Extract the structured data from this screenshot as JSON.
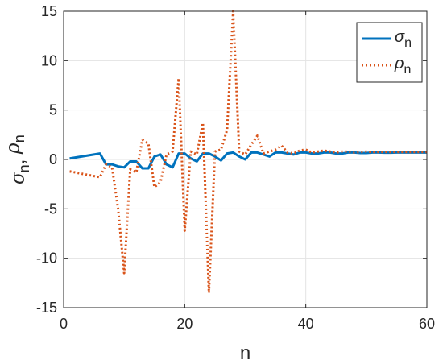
{
  "chart_data": {
    "type": "line",
    "xlabel": "n",
    "ylabel": "σn, ρn",
    "xlim": [
      0,
      60
    ],
    "ylim": [
      -15,
      15
    ],
    "xticks": [
      0,
      20,
      40,
      60
    ],
    "yticks": [
      15,
      10,
      5,
      0,
      -5,
      -10,
      -15
    ],
    "xtick_labels": [
      "0",
      "20",
      "40",
      "60"
    ],
    "ytick_labels": [
      "15",
      "10",
      "5",
      "0",
      "-5",
      "-10",
      "-15"
    ],
    "grid": true,
    "legend_position": "top-right",
    "series": [
      {
        "name": "σn",
        "name_base": "σ",
        "name_sub": "n",
        "color": "#0072BD",
        "style": "solid",
        "points": [
          [
            1,
            0.1
          ],
          [
            6,
            0.6
          ],
          [
            7,
            -0.5
          ],
          [
            8,
            -0.5
          ],
          [
            9,
            -0.7
          ],
          [
            10,
            -0.8
          ],
          [
            11,
            -0.2
          ],
          [
            12,
            -0.2
          ],
          [
            13,
            -0.9
          ],
          [
            14,
            -0.9
          ],
          [
            15,
            0.3
          ],
          [
            16,
            0.5
          ],
          [
            17,
            -0.5
          ],
          [
            18,
            -0.8
          ],
          [
            19,
            0.6
          ],
          [
            20,
            0.6
          ],
          [
            21,
            0.1
          ],
          [
            22,
            -0.2
          ],
          [
            23,
            0.6
          ],
          [
            24,
            0.6
          ],
          [
            25,
            0.3
          ],
          [
            26,
            -0.1
          ],
          [
            27,
            0.6
          ],
          [
            28,
            0.7
          ],
          [
            29,
            0.3
          ],
          [
            30,
            0.0
          ],
          [
            31,
            0.7
          ],
          [
            32,
            0.7
          ],
          [
            33,
            0.5
          ],
          [
            34,
            0.3
          ],
          [
            35,
            0.7
          ],
          [
            36,
            0.7
          ],
          [
            37,
            0.6
          ],
          [
            38,
            0.5
          ],
          [
            39,
            0.7
          ],
          [
            40,
            0.7
          ],
          [
            41,
            0.6
          ],
          [
            42,
            0.6
          ],
          [
            43,
            0.7
          ],
          [
            44,
            0.7
          ],
          [
            45,
            0.6
          ],
          [
            46,
            0.6
          ],
          [
            47,
            0.7
          ],
          [
            48,
            0.7
          ],
          [
            49,
            0.65
          ],
          [
            50,
            0.65
          ],
          [
            51,
            0.7
          ],
          [
            52,
            0.7
          ],
          [
            53,
            0.68
          ],
          [
            54,
            0.68
          ],
          [
            55,
            0.7
          ],
          [
            56,
            0.7
          ],
          [
            57,
            0.7
          ],
          [
            58,
            0.7
          ],
          [
            59,
            0.7
          ],
          [
            60,
            0.7
          ]
        ]
      },
      {
        "name": "ρn",
        "name_base": "ρ",
        "name_sub": "n",
        "color": "#D95319",
        "style": "dotted",
        "points": [
          [
            1,
            -1.2
          ],
          [
            6,
            -1.8
          ],
          [
            7,
            -0.5
          ],
          [
            8,
            -0.8
          ],
          [
            9,
            -5.0
          ],
          [
            10,
            -11.5
          ],
          [
            11,
            -1.0
          ],
          [
            12,
            -1.3
          ],
          [
            13,
            2.0
          ],
          [
            14,
            1.6
          ],
          [
            15,
            -2.8
          ],
          [
            16,
            -2.3
          ],
          [
            17,
            0.5
          ],
          [
            18,
            0.8
          ],
          [
            19,
            8.2
          ],
          [
            20,
            -7.2
          ],
          [
            21,
            0.8
          ],
          [
            22,
            0.5
          ],
          [
            23,
            3.7
          ],
          [
            24,
            -13.5
          ],
          [
            25,
            0.8
          ],
          [
            26,
            1.0
          ],
          [
            27,
            3.0
          ],
          [
            28,
            15.0
          ],
          [
            29,
            0.8
          ],
          [
            30,
            0.5
          ],
          [
            31,
            1.5
          ],
          [
            32,
            2.4
          ],
          [
            33,
            0.6
          ],
          [
            34,
            0.8
          ],
          [
            35,
            1.0
          ],
          [
            36,
            1.4
          ],
          [
            37,
            0.7
          ],
          [
            38,
            0.6
          ],
          [
            39,
            0.9
          ],
          [
            40,
            1.0
          ],
          [
            41,
            0.7
          ],
          [
            42,
            0.8
          ],
          [
            43,
            0.9
          ],
          [
            44,
            0.8
          ],
          [
            45,
            0.7
          ],
          [
            46,
            0.8
          ],
          [
            47,
            0.8
          ],
          [
            48,
            0.7
          ],
          [
            49,
            0.75
          ],
          [
            50,
            0.8
          ],
          [
            51,
            0.75
          ],
          [
            52,
            0.75
          ],
          [
            53,
            0.75
          ],
          [
            54,
            0.75
          ],
          [
            55,
            0.75
          ],
          [
            56,
            0.75
          ],
          [
            57,
            0.75
          ],
          [
            58,
            0.75
          ],
          [
            59,
            0.75
          ],
          [
            60,
            0.75
          ]
        ]
      }
    ]
  }
}
